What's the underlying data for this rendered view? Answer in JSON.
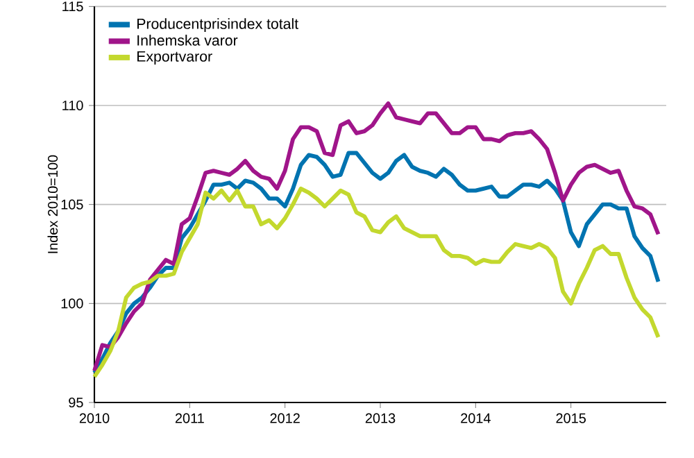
{
  "chart_data": {
    "type": "line",
    "ylabel": "Index 2010=100",
    "x": [
      "2010-01",
      "2010-02",
      "2010-03",
      "2010-04",
      "2010-05",
      "2010-06",
      "2010-07",
      "2010-08",
      "2010-09",
      "2010-10",
      "2010-11",
      "2010-12",
      "2011-01",
      "2011-02",
      "2011-03",
      "2011-04",
      "2011-05",
      "2011-06",
      "2011-07",
      "2011-08",
      "2011-09",
      "2011-10",
      "2011-11",
      "2011-12",
      "2012-01",
      "2012-02",
      "2012-03",
      "2012-04",
      "2012-05",
      "2012-06",
      "2012-07",
      "2012-08",
      "2012-09",
      "2012-10",
      "2012-11",
      "2012-12",
      "2013-01",
      "2013-02",
      "2013-03",
      "2013-04",
      "2013-05",
      "2013-06",
      "2013-07",
      "2013-08",
      "2013-09",
      "2013-10",
      "2013-11",
      "2013-12",
      "2014-01",
      "2014-02",
      "2014-03",
      "2014-04",
      "2014-05",
      "2014-06",
      "2014-07",
      "2014-08",
      "2014-09",
      "2014-10",
      "2014-11",
      "2014-12",
      "2015-01",
      "2015-02",
      "2015-03",
      "2015-04",
      "2015-05",
      "2015-06",
      "2015-07",
      "2015-08",
      "2015-09",
      "2015-10",
      "2015-11",
      "2015-12"
    ],
    "series": [
      {
        "name": "Producentprisindex totalt",
        "color": "#0073b0",
        "values": [
          96.5,
          97.2,
          98.0,
          98.6,
          99.5,
          100.0,
          100.3,
          100.8,
          101.4,
          101.8,
          101.8,
          103.3,
          103.8,
          104.5,
          105.2,
          106.0,
          106.0,
          106.1,
          105.8,
          106.2,
          106.1,
          105.8,
          105.3,
          105.3,
          104.9,
          105.8,
          107.0,
          107.5,
          107.4,
          107.0,
          106.4,
          106.5,
          107.6,
          107.6,
          107.1,
          106.6,
          106.3,
          106.6,
          107.2,
          107.5,
          106.9,
          106.7,
          106.6,
          106.4,
          106.8,
          106.5,
          106.0,
          105.7,
          105.7,
          105.8,
          105.9,
          105.4,
          105.4,
          105.7,
          106.0,
          106.0,
          105.9,
          106.2,
          105.8,
          105.2,
          103.6,
          102.9,
          104.0,
          104.5,
          105.0,
          105.0,
          104.8,
          104.8,
          103.4,
          102.8,
          102.4,
          101.1
        ]
      },
      {
        "name": "Inhemska varor",
        "color": "#a0158a",
        "values": [
          96.6,
          97.9,
          97.8,
          98.3,
          99.0,
          99.6,
          100.0,
          101.2,
          101.7,
          102.2,
          102.0,
          104.0,
          104.3,
          105.4,
          106.6,
          106.7,
          106.6,
          106.5,
          106.8,
          107.2,
          106.7,
          106.4,
          106.3,
          105.8,
          106.7,
          108.3,
          108.9,
          108.9,
          108.7,
          107.6,
          107.5,
          109.0,
          109.2,
          108.6,
          108.7,
          109.0,
          109.6,
          110.1,
          109.4,
          109.3,
          109.2,
          109.1,
          109.6,
          109.6,
          109.1,
          108.6,
          108.6,
          108.9,
          108.9,
          108.3,
          108.3,
          108.2,
          108.5,
          108.6,
          108.6,
          108.7,
          108.3,
          107.8,
          106.6,
          105.2,
          106.0,
          106.6,
          106.9,
          107.0,
          106.8,
          106.6,
          106.7,
          105.7,
          104.9,
          104.8,
          104.5,
          103.5
        ]
      },
      {
        "name": "Exportvaror",
        "color": "#c3d82e",
        "values": [
          96.3,
          96.9,
          97.6,
          98.6,
          100.3,
          100.8,
          101.0,
          101.1,
          101.4,
          101.4,
          101.5,
          102.6,
          103.3,
          104.0,
          105.6,
          105.3,
          105.7,
          105.2,
          105.7,
          104.9,
          104.9,
          104.0,
          104.2,
          103.8,
          104.3,
          105.0,
          105.8,
          105.6,
          105.3,
          104.9,
          105.3,
          105.7,
          105.5,
          104.6,
          104.4,
          103.7,
          103.6,
          104.1,
          104.4,
          103.8,
          103.6,
          103.4,
          103.4,
          103.4,
          102.7,
          102.4,
          102.4,
          102.3,
          102.0,
          102.2,
          102.1,
          102.1,
          102.6,
          103.0,
          102.9,
          102.8,
          103.0,
          102.8,
          102.3,
          100.6,
          100.0,
          101.0,
          101.8,
          102.7,
          102.9,
          102.5,
          102.5,
          101.3,
          100.3,
          99.7,
          99.3,
          98.3
        ]
      }
    ],
    "xlim": [
      "2010",
      "2016"
    ],
    "xticks": [
      "2010",
      "2011",
      "2012",
      "2013",
      "2014",
      "2015"
    ],
    "ylim": [
      95,
      115
    ],
    "yticks": [
      95,
      100,
      105,
      110,
      115
    ],
    "grid": "y",
    "legend": "top left",
    "marker": "none",
    "line_style": "solid"
  }
}
